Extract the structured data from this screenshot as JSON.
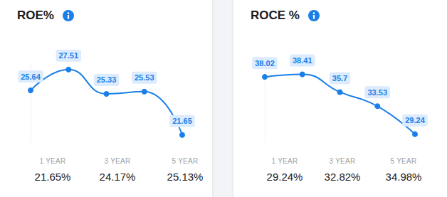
{
  "chart_data": [
    {
      "type": "line",
      "title": "ROE%",
      "categories": [
        null,
        null,
        null,
        null,
        null
      ],
      "values": [
        25.64,
        27.51,
        25.33,
        25.53,
        21.65
      ],
      "color": "#1a7fe8",
      "ylim": [
        21,
        28
      ],
      "tick_labels": false,
      "data_labels": true,
      "grid": false,
      "marker": "circle",
      "line_style": "smooth"
    },
    {
      "type": "line",
      "title": "ROCE %",
      "categories": [
        null,
        null,
        null,
        null,
        null
      ],
      "values": [
        38.02,
        38.41,
        35.7,
        33.53,
        29.24
      ],
      "color": "#1a7fe8",
      "ylim": [
        28,
        40
      ],
      "tick_labels": false,
      "data_labels": true,
      "grid": false,
      "marker": "circle",
      "line_style": "smooth"
    }
  ],
  "summary": [
    [
      {
        "label": "1 YEAR",
        "value": "21.65%"
      },
      {
        "label": "3 YEAR",
        "value": "24.17%"
      },
      {
        "label": "5 YEAR",
        "value": "25.13%"
      }
    ],
    [
      {
        "label": "1 YEAR",
        "value": "29.24%"
      },
      {
        "label": "3 YEAR",
        "value": "32.82%"
      },
      {
        "label": "5 YEAR",
        "value": "34.98%"
      }
    ]
  ]
}
